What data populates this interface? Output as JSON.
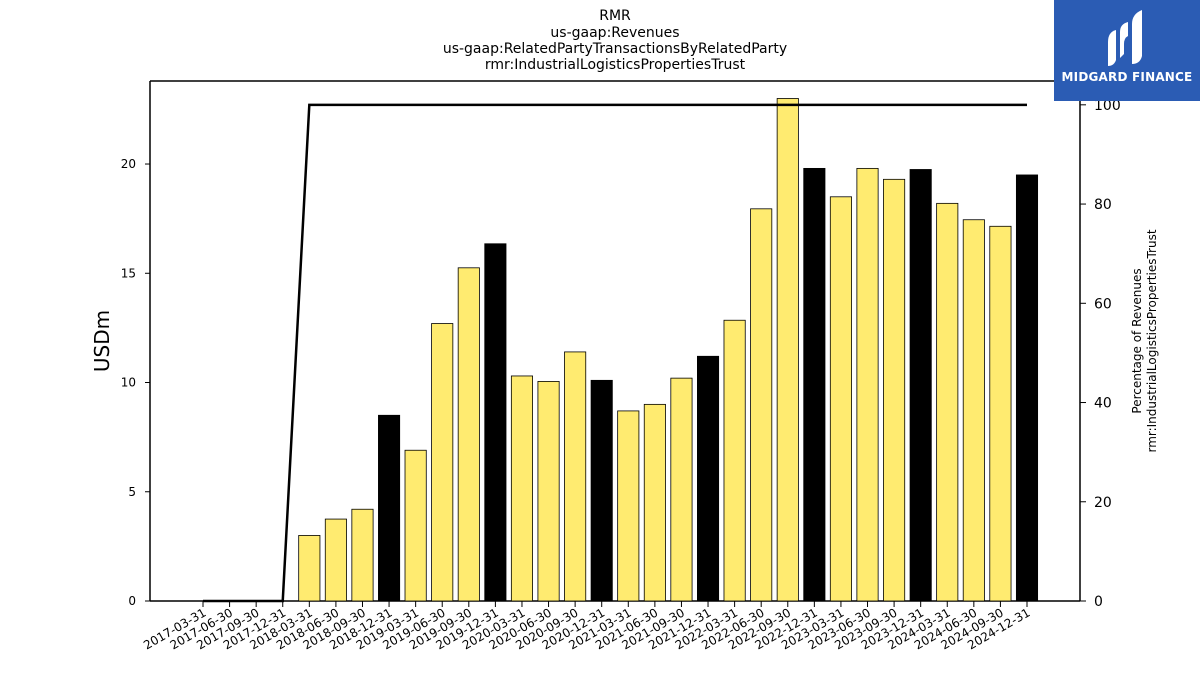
{
  "chart_data": {
    "type": "bar",
    "title_lines": [
      "RMR",
      "us-gaap:Revenues",
      "us-gaap:RelatedPartyTransactionsByRelatedParty",
      "rmr:IndustrialLogisticsPropertiesTrust"
    ],
    "ylabel_left": "USDm",
    "ylabel_right_lines": [
      "Percentage of Revenues",
      "rmr:IndustrialLogisticsPropertiesTrust"
    ],
    "ylim_left": [
      0,
      23.8
    ],
    "ylim_right": [
      0,
      104.8
    ],
    "yticks_left": [
      0,
      5,
      10,
      15,
      20
    ],
    "yticks_right": [
      0,
      20,
      40,
      60,
      80,
      100
    ],
    "categories": [
      "2017-03-31",
      "2017-06-30",
      "2017-09-30",
      "2017-12-31",
      "2018-03-31",
      "2018-06-30",
      "2018-09-30",
      "2018-12-31",
      "2019-03-31",
      "2019-06-30",
      "2019-09-30",
      "2019-12-31",
      "2020-03-31",
      "2020-06-30",
      "2020-09-30",
      "2020-12-31",
      "2021-03-31",
      "2021-06-30",
      "2021-09-30",
      "2021-12-31",
      "2022-03-31",
      "2022-06-30",
      "2022-09-30",
      "2022-12-31",
      "2023-03-31",
      "2023-06-30",
      "2023-09-30",
      "2023-12-31",
      "2024-03-31",
      "2024-06-30",
      "2024-09-30",
      "2024-12-31"
    ],
    "series": [
      {
        "kind": "bar",
        "values": [
          0,
          0,
          0,
          0,
          3.0,
          3.75,
          4.2,
          8.5,
          6.9,
          12.7,
          15.25,
          16.35,
          10.3,
          10.05,
          11.4,
          10.1,
          8.7,
          9.0,
          10.2,
          11.2,
          12.85,
          17.95,
          23.0,
          19.8,
          18.5,
          19.8,
          19.3,
          19.75,
          18.2,
          17.45,
          17.15,
          19.5
        ],
        "highlight": [
          false,
          false,
          false,
          false,
          false,
          false,
          false,
          true,
          false,
          false,
          false,
          true,
          false,
          false,
          false,
          true,
          false,
          false,
          false,
          true,
          false,
          false,
          false,
          true,
          false,
          false,
          false,
          true,
          false,
          false,
          false,
          true
        ],
        "color": "#ffeb70",
        "highlight_color": "#000000"
      },
      {
        "kind": "line",
        "axis": "right",
        "values": [
          0,
          0,
          0,
          0,
          100,
          100,
          100,
          100,
          100,
          100,
          100,
          100,
          100,
          100,
          100,
          100,
          100,
          100,
          100,
          100,
          100,
          100,
          100,
          100,
          100,
          100,
          100,
          100,
          100,
          100,
          100,
          100
        ],
        "color": "#000000"
      }
    ],
    "grid": false,
    "legend": "none"
  },
  "logo": {
    "text": "MIDGARD FINANCE",
    "background": "#2b5cb4"
  }
}
